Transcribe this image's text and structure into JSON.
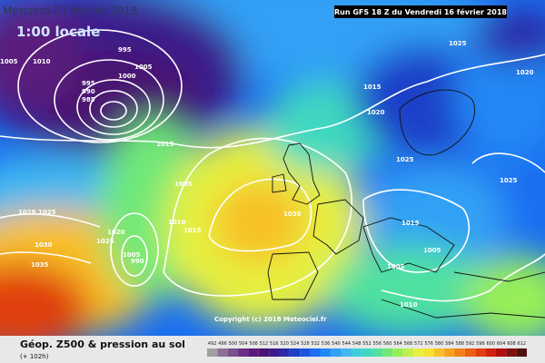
{
  "header": {
    "date": "Mercredi 21 février 2018",
    "local_time": "1:00 locale",
    "run": "Run GFS 18 Z du Vendredi 16 février 2018"
  },
  "isobar_labels": [
    1005,
    1010,
    995,
    1000,
    1005,
    995,
    990,
    985,
    1015,
    1020,
    1025,
    1020,
    1015,
    1005,
    1030,
    1025,
    1025,
    1020,
    1025,
    1010,
    1015,
    1020,
    1025,
    1030,
    1035,
    1005,
    990,
    1015,
    1005,
    1005,
    1010
  ],
  "copyright": "Copyright (c) 2018 Meteociel.fr",
  "legend": {
    "title": "Géop. Z500 & pression au sol",
    "lead": "(+ 102h)",
    "scale": [
      492,
      496,
      500,
      504,
      508,
      512,
      516,
      520,
      524,
      528,
      532,
      536,
      540,
      544,
      548,
      552,
      556,
      560,
      564,
      568,
      572,
      576,
      580,
      584,
      588,
      592,
      596,
      600,
      604,
      608,
      612
    ],
    "colors": [
      "#a0a0a0",
      "#8c6e96",
      "#7a4f8c",
      "#6a2f85",
      "#5a1a7d",
      "#4a1470",
      "#3a1a8c",
      "#2a2aa8",
      "#1f3fc8",
      "#1a55e0",
      "#1a6ef0",
      "#2088f5",
      "#30a0f5",
      "#40b8f0",
      "#40ccdc",
      "#40d8c0",
      "#50e0a0",
      "#70e878",
      "#98ee58",
      "#c0f048",
      "#e6f040",
      "#f8e030",
      "#f8c028",
      "#f8a020",
      "#f08018",
      "#e86010",
      "#e04010",
      "#d02010",
      "#b01010",
      "#801010",
      "#501010"
    ]
  }
}
